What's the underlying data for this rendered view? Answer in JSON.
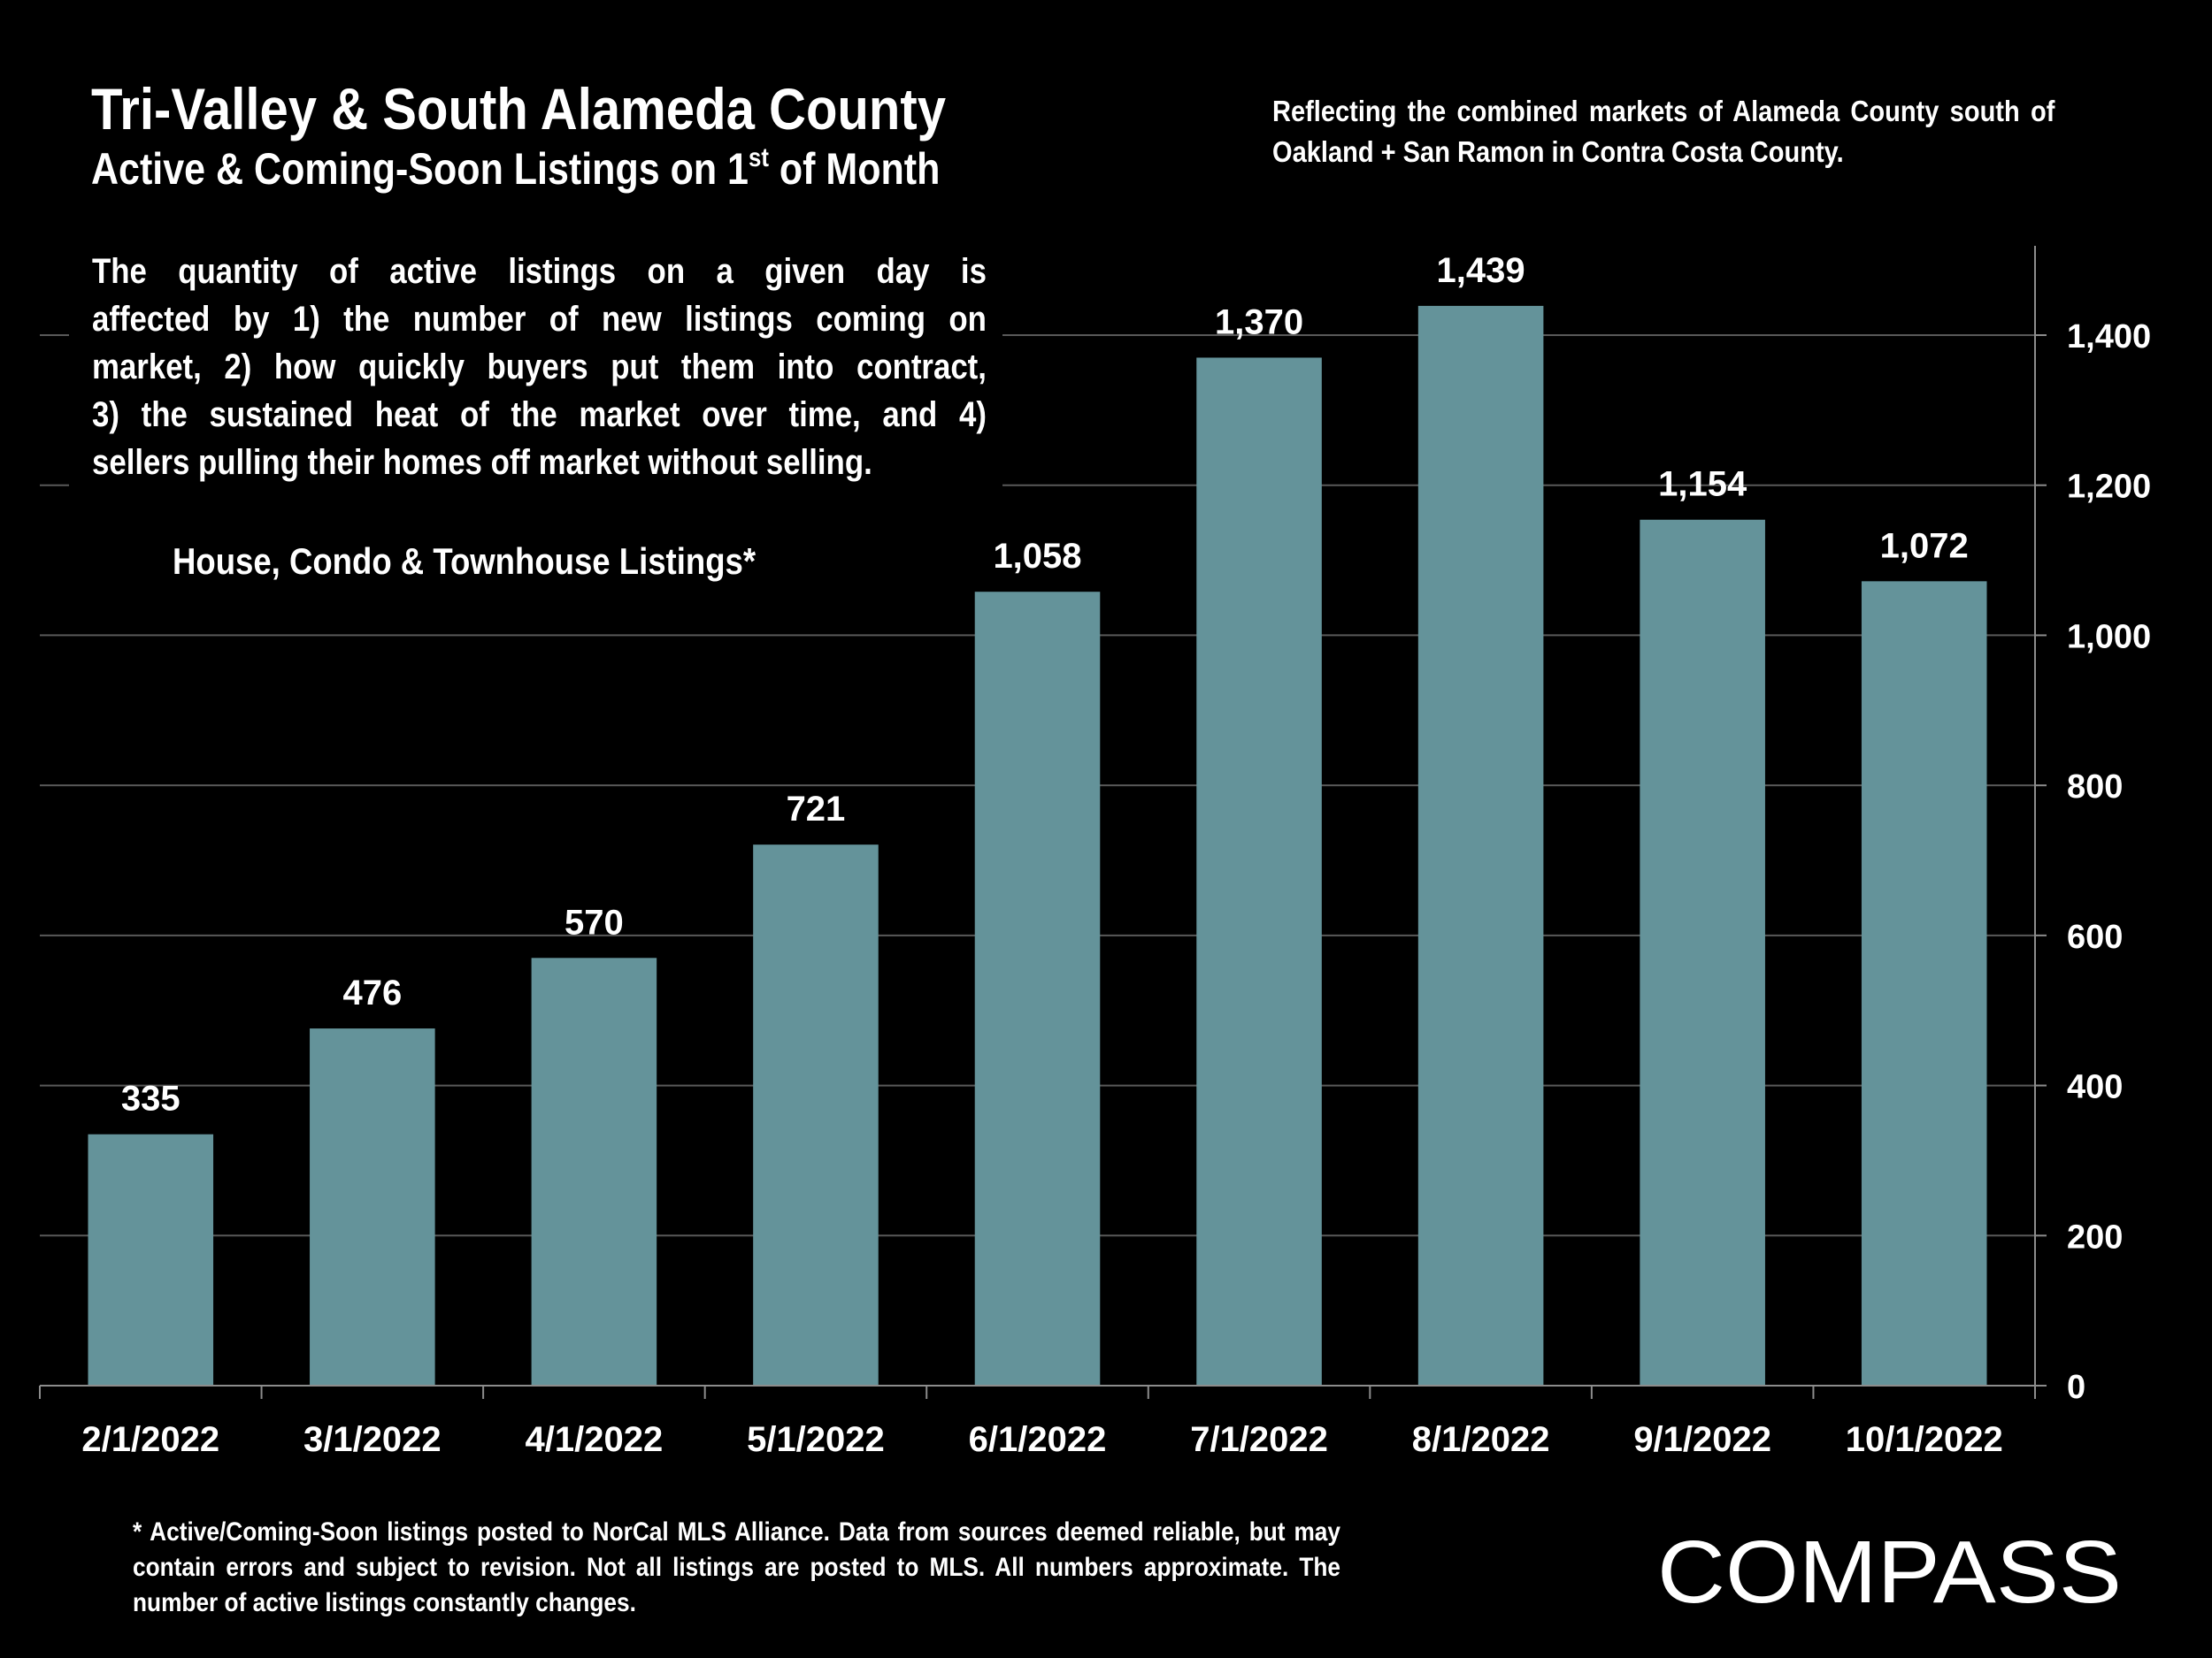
{
  "header": {
    "title": "Tri-Valley & South Alameda County",
    "subtitle_main": "Active & Coming-Soon Listings on 1",
    "subtitle_sup": "st",
    "subtitle_end": " of Month",
    "scope_note": "Reflecting the combined markets of Alameda County south of Oakland + San Ramon in Contra Costa County."
  },
  "explanation": {
    "lines": [
      "The quantity of active listings on a given day is",
      "affected by 1) the number of new listings coming on",
      "market, 2) how quickly buyers put them into contract,",
      "3) the sustained heat of the market over time, and 4)",
      "sellers pulling their homes off market without selling."
    ]
  },
  "series_label": "House, Condo & Townhouse Listings*",
  "footnote": "* Active/Coming-Soon listings posted to NorCal MLS Alliance.  Data from sources deemed reliable, but may contain errors and subject to revision.  Not all listings are posted to MLS. All numbers approximate. The number of active listings constantly changes.",
  "brand": {
    "logo_text": "COMPASS"
  },
  "colors": {
    "background": "#000000",
    "bar": "#64939a",
    "gridline": "#595959",
    "axis": "#8c8c8c",
    "text": "#ffffff"
  },
  "chart_data": {
    "type": "bar",
    "title": "Active & Coming-Soon Listings on 1st of Month",
    "xlabel": "",
    "ylabel": "",
    "categories": [
      "2/1/2022",
      "3/1/2022",
      "4/1/2022",
      "5/1/2022",
      "6/1/2022",
      "7/1/2022",
      "8/1/2022",
      "9/1/2022",
      "10/1/2022"
    ],
    "series": [
      {
        "name": "House, Condo & Townhouse Listings*",
        "values": [
          335,
          476,
          570,
          721,
          1058,
          1370,
          1439,
          1154,
          1072
        ],
        "data_labels": [
          "335",
          "476",
          "570",
          "721",
          "1,058",
          "1,370",
          "1,439",
          "1,154",
          "1,072"
        ]
      }
    ],
    "ylim": [
      0,
      1500
    ],
    "yticks": [
      0,
      200,
      400,
      600,
      800,
      1000,
      1200,
      1400
    ],
    "ytick_labels": [
      "0",
      "200",
      "400",
      "600",
      "800",
      "1,000",
      "1,200",
      "1,400"
    ],
    "y_axis_side": "right",
    "grid": true,
    "legend": "none"
  }
}
